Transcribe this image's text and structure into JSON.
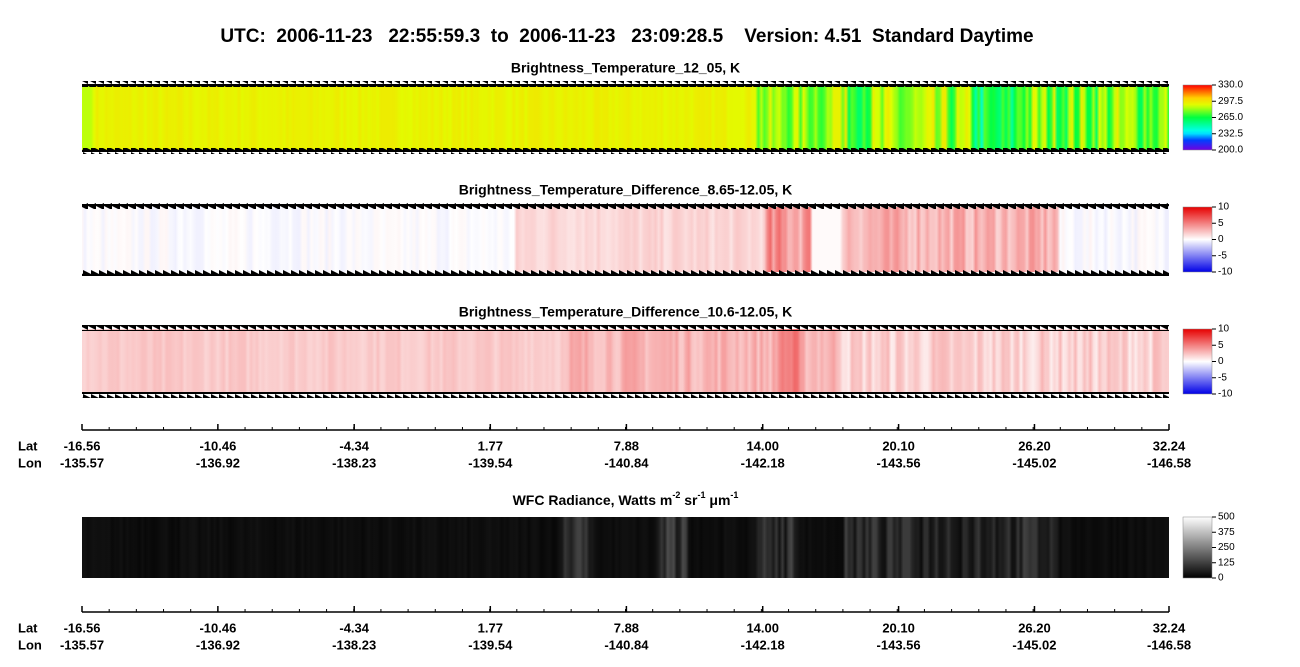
{
  "title": "UTC:  2006-11-23   22:55:59.3  to  2006-11-23   23:09:28.5    Version: 4.51  Standard Daytime",
  "panels": [
    {
      "title": "Brightness_Temperature_12_05, K",
      "colormap": "rainbow",
      "cticks": [
        {
          "value": 330,
          "label": "330.0"
        },
        297.5,
        {
          "value": 265,
          "label": "265.0"
        },
        232.5,
        {
          "value": 200,
          "label": "200.0"
        }
      ]
    },
    {
      "title": "Brightness_Temperature_Difference_8.65-12.05, K",
      "colormap": "diverging",
      "cticks": [
        10,
        5,
        0,
        -5,
        -10
      ]
    },
    {
      "title": "Brightness_Temperature_Difference_10.6-12.05, K",
      "colormap": "diverging",
      "cticks": [
        10,
        5,
        0,
        -5,
        -10
      ]
    },
    {
      "title_parts": [
        "WFC Radiance, Watts m",
        "-2",
        " sr",
        "-1",
        " μm",
        "-1"
      ],
      "colormap": "gray",
      "cticks": [
        500,
        375,
        250,
        125,
        0
      ]
    }
  ],
  "axis": {
    "lat_label": "Lat",
    "lon_label": "Lon",
    "xlim": [
      -16.56,
      32.24
    ],
    "lat": [
      -16.56,
      -10.46,
      -4.34,
      1.77,
      7.88,
      {
        "value": 14,
        "label": "14.00"
      },
      {
        "value": 20.1,
        "label": "20.10"
      },
      {
        "value": 26.2,
        "label": "26.20"
      },
      32.24
    ],
    "lon": [
      "-135.57",
      "-136.92",
      "-138.23",
      "-139.54",
      "-140.84",
      "-142.18",
      "-143.56",
      "-145.02",
      "-146.58"
    ]
  }
}
